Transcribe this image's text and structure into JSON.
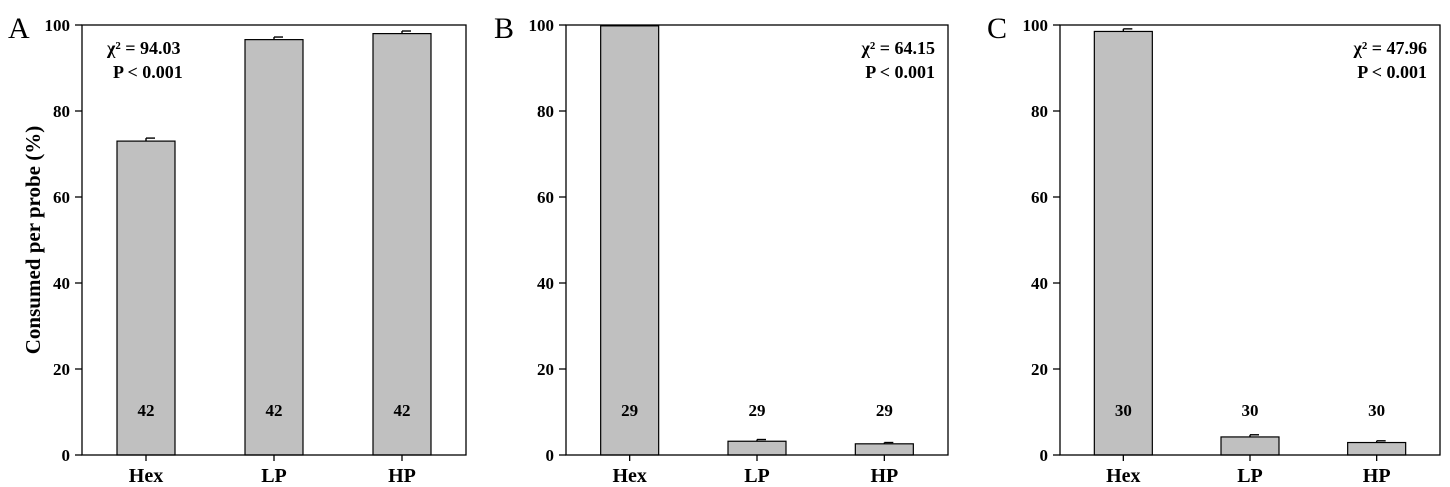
{
  "figure": {
    "ylabel": "Consumed per probe (%)"
  },
  "chart_data": [
    {
      "type": "bar",
      "panel_label": "A",
      "categories": [
        "Hex",
        "LP",
        "HP"
      ],
      "values": [
        73.0,
        96.6,
        98.0
      ],
      "errors": [
        0.7,
        0.6,
        0.6
      ],
      "sample_sizes": [
        "42",
        "42",
        "42"
      ],
      "stat_chi": "χ² = 94.03",
      "stat_p": "P < 0.001",
      "ylim": [
        0,
        100
      ],
      "yticks": [
        "0",
        "20",
        "40",
        "60",
        "80",
        "100"
      ],
      "ylabel": "Consumed per probe (%)",
      "grid": false
    },
    {
      "type": "bar",
      "panel_label": "B",
      "categories": [
        "Hex",
        "LP",
        "HP"
      ],
      "values": [
        99.8,
        3.2,
        2.6
      ],
      "errors": [
        0.1,
        0.4,
        0.3
      ],
      "sample_sizes": [
        "29",
        "29",
        "29"
      ],
      "stat_chi": "χ² = 64.15",
      "stat_p": "P < 0.001",
      "ylim": [
        0,
        100
      ],
      "yticks": [
        "0",
        "20",
        "40",
        "60",
        "80",
        "100"
      ],
      "grid": false
    },
    {
      "type": "bar",
      "panel_label": "C",
      "categories": [
        "Hex",
        "LP",
        "HP"
      ],
      "values": [
        98.5,
        4.2,
        2.9
      ],
      "errors": [
        0.6,
        0.5,
        0.4
      ],
      "sample_sizes": [
        "30",
        "30",
        "30"
      ],
      "stat_chi": "χ² = 47.96",
      "stat_p": "P < 0.001",
      "ylim": [
        0,
        100
      ],
      "yticks": [
        "0",
        "20",
        "40",
        "60",
        "80",
        "100"
      ],
      "grid": false
    }
  ]
}
